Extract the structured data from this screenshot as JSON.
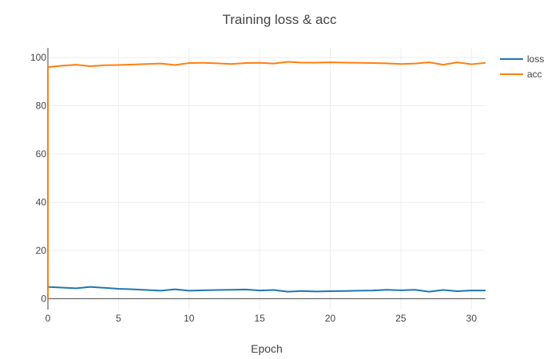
{
  "chart_data": {
    "type": "line",
    "title": "Training loss & acc",
    "xlabel": "Epoch",
    "ylabel": "",
    "xlim": [
      0,
      31
    ],
    "ylim": [
      -4.5,
      104
    ],
    "x_ticks": [
      0,
      5,
      10,
      15,
      20,
      25,
      30
    ],
    "y_ticks": [
      0,
      20,
      40,
      60,
      80,
      100
    ],
    "grid": true,
    "legend_position": "top-right",
    "x": [
      0,
      1,
      2,
      3,
      4,
      5,
      6,
      7,
      8,
      9,
      10,
      11,
      12,
      13,
      14,
      15,
      16,
      17,
      18,
      19,
      20,
      21,
      22,
      23,
      24,
      25,
      26,
      27,
      28,
      29,
      30,
      31
    ],
    "series": [
      {
        "name": "loss",
        "color": "#1f77b4",
        "values": [
          4.9,
          4.6,
          4.3,
          4.9,
          4.5,
          4.1,
          3.9,
          3.6,
          3.3,
          3.9,
          3.3,
          3.5,
          3.6,
          3.7,
          3.8,
          3.4,
          3.6,
          2.9,
          3.2,
          3.0,
          3.1,
          3.2,
          3.3,
          3.4,
          3.7,
          3.5,
          3.7,
          2.9,
          3.6,
          3.1,
          3.4,
          3.4
        ]
      },
      {
        "name": "acc",
        "color": "#ff7f0e",
        "values": [
          96.0,
          96.6,
          97.0,
          96.4,
          96.8,
          96.9,
          97.1,
          97.3,
          97.5,
          96.9,
          97.7,
          97.8,
          97.6,
          97.3,
          97.7,
          97.8,
          97.5,
          98.2,
          97.9,
          97.9,
          98.0,
          97.9,
          97.8,
          97.7,
          97.6,
          97.3,
          97.5,
          98.0,
          97.0,
          98.0,
          97.2,
          97.8
        ]
      }
    ]
  }
}
